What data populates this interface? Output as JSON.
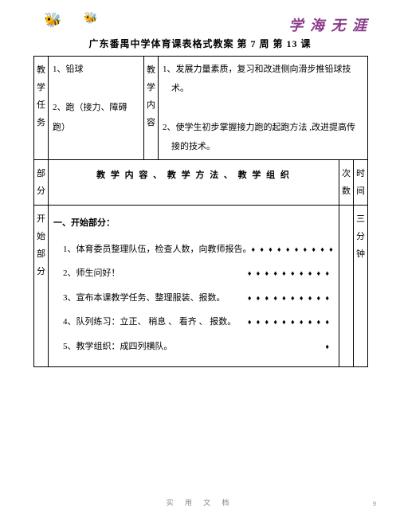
{
  "decor": {
    "bee1": "🐝",
    "bee2": "🐝"
  },
  "calligraphy": "学 海 无 涯",
  "title": "广东番禺中学体育课表格式教案  第  7  周  第  13  课",
  "row1": {
    "label": "教学任务",
    "tasks": "1、铅球\n\n2、跑（接力、障碍跑）",
    "label2": "教学内容",
    "content": "1、发展力量素质，复习和改进侧向滑步推铅球技\n　术。\n\n2、使学生初步掌握接力跑的起跑方法 ,改进提高传\n　接的技术。"
  },
  "row2": {
    "label": "部分",
    "heading": "教 学 内 容 、 教 学 方 法 、 教 学 组 织",
    "col_ci": "次数",
    "col_shi": "时间"
  },
  "row3": {
    "label": "开始部分",
    "section_title": "一、开始部分：",
    "items": [
      {
        "text": "1、体育委员整理队伍，检查人数，向教师报告。",
        "dots": "♦ ♦ ♦ ♦ ♦ ♦ ♦ ♦ ♦ ♦"
      },
      {
        "text": "2、师生问好！",
        "dots": "♦ ♦ ♦ ♦ ♦ ♦ ♦ ♦ ♦ ♦"
      },
      {
        "text": "3、宣布本课教学任务、整理服装、报数。",
        "dots": "♦ ♦ ♦ ♦ ♦ ♦ ♦ ♦ ♦ ♦"
      },
      {
        "text": "4、队列练习：立正、 稍息 、 看齐 、 报数。",
        "dots": "♦ ♦ ♦ ♦ ♦ ♦ ♦ ♦ ♦ ♦"
      },
      {
        "text": "5、教学组织：成四列横队。",
        "dots": "♦"
      }
    ],
    "time": "三分钟"
  },
  "footer": "实  用  文  档",
  "page_num": "9"
}
